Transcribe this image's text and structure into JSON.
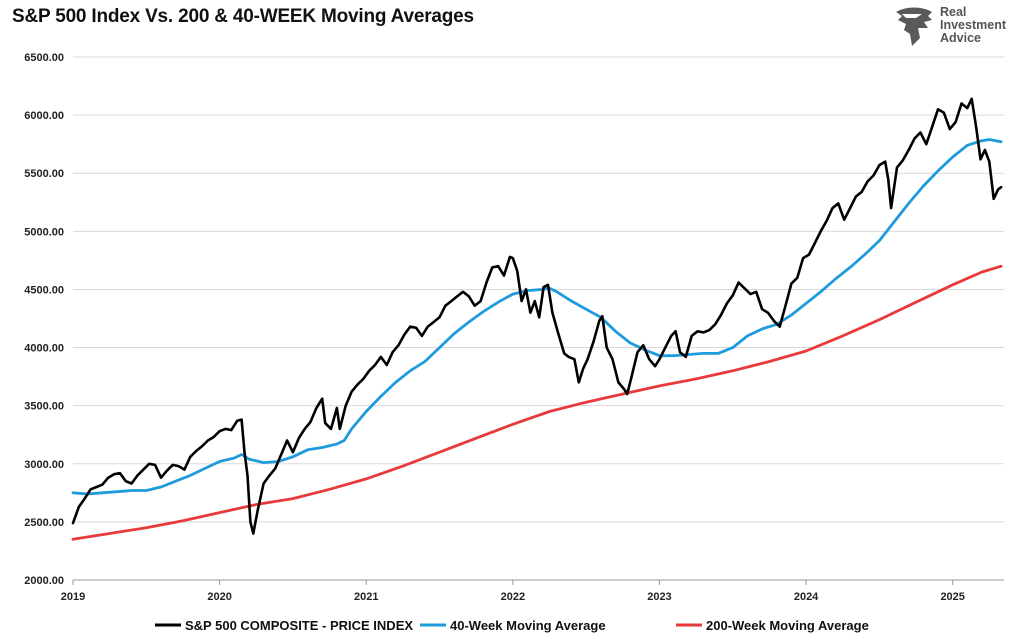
{
  "title": "S&P 500 Index Vs. 200 & 40-WEEK Moving Averages",
  "brand": {
    "lines": [
      "Real",
      "Investment",
      "Advice"
    ],
    "icon": "eagle-head-icon",
    "color": "#5a5a5a"
  },
  "chart_data": {
    "type": "line",
    "xlabel": "",
    "ylabel": "",
    "xlim": [
      2019.0,
      2025.35
    ],
    "ylim": [
      2000,
      6500
    ],
    "y_ticks": [
      "2000.00",
      "2500.00",
      "3000.00",
      "3500.00",
      "4000.00",
      "4500.00",
      "5000.00",
      "5500.00",
      "6000.00",
      "6500.00"
    ],
    "x_ticks": [
      "2019",
      "2020",
      "2021",
      "2022",
      "2023",
      "2024",
      "2025"
    ],
    "grid": "horizontal",
    "legend_position": "bottom",
    "series": [
      {
        "name": "S&P 500 COMPOSITE - PRICE INDEX",
        "color": "#000000",
        "points": [
          [
            2019.0,
            2490
          ],
          [
            2019.04,
            2630
          ],
          [
            2019.08,
            2700
          ],
          [
            2019.12,
            2780
          ],
          [
            2019.16,
            2800
          ],
          [
            2019.2,
            2820
          ],
          [
            2019.24,
            2880
          ],
          [
            2019.28,
            2910
          ],
          [
            2019.32,
            2920
          ],
          [
            2019.36,
            2850
          ],
          [
            2019.4,
            2830
          ],
          [
            2019.44,
            2900
          ],
          [
            2019.48,
            2950
          ],
          [
            2019.52,
            3000
          ],
          [
            2019.56,
            2990
          ],
          [
            2019.6,
            2880
          ],
          [
            2019.64,
            2940
          ],
          [
            2019.68,
            2990
          ],
          [
            2019.72,
            2980
          ],
          [
            2019.76,
            2950
          ],
          [
            2019.8,
            3060
          ],
          [
            2019.84,
            3110
          ],
          [
            2019.88,
            3150
          ],
          [
            2019.92,
            3200
          ],
          [
            2019.96,
            3230
          ],
          [
            2020.0,
            3280
          ],
          [
            2020.04,
            3300
          ],
          [
            2020.08,
            3290
          ],
          [
            2020.12,
            3370
          ],
          [
            2020.15,
            3380
          ],
          [
            2020.17,
            3100
          ],
          [
            2020.19,
            2900
          ],
          [
            2020.21,
            2500
          ],
          [
            2020.23,
            2400
          ],
          [
            2020.26,
            2600
          ],
          [
            2020.3,
            2830
          ],
          [
            2020.34,
            2900
          ],
          [
            2020.38,
            2960
          ],
          [
            2020.42,
            3080
          ],
          [
            2020.46,
            3200
          ],
          [
            2020.5,
            3100
          ],
          [
            2020.54,
            3220
          ],
          [
            2020.58,
            3300
          ],
          [
            2020.62,
            3360
          ],
          [
            2020.66,
            3480
          ],
          [
            2020.7,
            3560
          ],
          [
            2020.72,
            3350
          ],
          [
            2020.76,
            3300
          ],
          [
            2020.8,
            3480
          ],
          [
            2020.82,
            3300
          ],
          [
            2020.86,
            3500
          ],
          [
            2020.9,
            3620
          ],
          [
            2020.94,
            3680
          ],
          [
            2020.98,
            3730
          ],
          [
            2021.02,
            3800
          ],
          [
            2021.06,
            3850
          ],
          [
            2021.1,
            3920
          ],
          [
            2021.14,
            3850
          ],
          [
            2021.18,
            3960
          ],
          [
            2021.22,
            4020
          ],
          [
            2021.26,
            4110
          ],
          [
            2021.3,
            4180
          ],
          [
            2021.34,
            4170
          ],
          [
            2021.38,
            4100
          ],
          [
            2021.42,
            4180
          ],
          [
            2021.46,
            4220
          ],
          [
            2021.5,
            4260
          ],
          [
            2021.54,
            4360
          ],
          [
            2021.58,
            4400
          ],
          [
            2021.62,
            4440
          ],
          [
            2021.66,
            4480
          ],
          [
            2021.7,
            4440
          ],
          [
            2021.74,
            4360
          ],
          [
            2021.78,
            4400
          ],
          [
            2021.82,
            4560
          ],
          [
            2021.86,
            4690
          ],
          [
            2021.9,
            4700
          ],
          [
            2021.94,
            4620
          ],
          [
            2021.98,
            4780
          ],
          [
            2022.0,
            4770
          ],
          [
            2022.03,
            4660
          ],
          [
            2022.06,
            4400
          ],
          [
            2022.09,
            4500
          ],
          [
            2022.12,
            4300
          ],
          [
            2022.15,
            4400
          ],
          [
            2022.18,
            4260
          ],
          [
            2022.21,
            4520
          ],
          [
            2022.24,
            4540
          ],
          [
            2022.27,
            4300
          ],
          [
            2022.31,
            4120
          ],
          [
            2022.35,
            3950
          ],
          [
            2022.38,
            3920
          ],
          [
            2022.42,
            3900
          ],
          [
            2022.45,
            3700
          ],
          [
            2022.48,
            3820
          ],
          [
            2022.51,
            3900
          ],
          [
            2022.55,
            4050
          ],
          [
            2022.59,
            4230
          ],
          [
            2022.61,
            4270
          ],
          [
            2022.64,
            4000
          ],
          [
            2022.68,
            3900
          ],
          [
            2022.72,
            3700
          ],
          [
            2022.76,
            3640
          ],
          [
            2022.78,
            3600
          ],
          [
            2022.81,
            3750
          ],
          [
            2022.85,
            3960
          ],
          [
            2022.89,
            4020
          ],
          [
            2022.93,
            3900
          ],
          [
            2022.97,
            3840
          ],
          [
            2023.0,
            3900
          ],
          [
            2023.04,
            4000
          ],
          [
            2023.08,
            4100
          ],
          [
            2023.11,
            4140
          ],
          [
            2023.14,
            3960
          ],
          [
            2023.18,
            3920
          ],
          [
            2023.22,
            4100
          ],
          [
            2023.26,
            4140
          ],
          [
            2023.3,
            4130
          ],
          [
            2023.34,
            4150
          ],
          [
            2023.38,
            4200
          ],
          [
            2023.42,
            4280
          ],
          [
            2023.46,
            4380
          ],
          [
            2023.5,
            4450
          ],
          [
            2023.54,
            4560
          ],
          [
            2023.58,
            4510
          ],
          [
            2023.62,
            4460
          ],
          [
            2023.66,
            4480
          ],
          [
            2023.7,
            4330
          ],
          [
            2023.74,
            4300
          ],
          [
            2023.78,
            4230
          ],
          [
            2023.82,
            4180
          ],
          [
            2023.86,
            4360
          ],
          [
            2023.9,
            4550
          ],
          [
            2023.94,
            4600
          ],
          [
            2023.98,
            4770
          ],
          [
            2024.02,
            4800
          ],
          [
            2024.06,
            4900
          ],
          [
            2024.1,
            5000
          ],
          [
            2024.14,
            5090
          ],
          [
            2024.18,
            5200
          ],
          [
            2024.22,
            5240
          ],
          [
            2024.26,
            5100
          ],
          [
            2024.3,
            5200
          ],
          [
            2024.34,
            5300
          ],
          [
            2024.38,
            5340
          ],
          [
            2024.42,
            5430
          ],
          [
            2024.46,
            5480
          ],
          [
            2024.5,
            5570
          ],
          [
            2024.54,
            5600
          ],
          [
            2024.56,
            5450
          ],
          [
            2024.58,
            5200
          ],
          [
            2024.62,
            5550
          ],
          [
            2024.66,
            5610
          ],
          [
            2024.7,
            5700
          ],
          [
            2024.74,
            5800
          ],
          [
            2024.78,
            5850
          ],
          [
            2024.82,
            5750
          ],
          [
            2024.86,
            5900
          ],
          [
            2024.9,
            6050
          ],
          [
            2024.94,
            6020
          ],
          [
            2024.98,
            5880
          ],
          [
            2025.02,
            5940
          ],
          [
            2025.06,
            6100
          ],
          [
            2025.1,
            6060
          ],
          [
            2025.13,
            6140
          ],
          [
            2025.16,
            5900
          ],
          [
            2025.19,
            5620
          ],
          [
            2025.22,
            5700
          ],
          [
            2025.25,
            5600
          ],
          [
            2025.28,
            5280
          ],
          [
            2025.31,
            5360
          ],
          [
            2025.33,
            5380
          ]
        ]
      },
      {
        "name": "40-Week Moving Average",
        "color": "#1e9bdc",
        "points": [
          [
            2019.0,
            2750
          ],
          [
            2019.1,
            2740
          ],
          [
            2019.2,
            2750
          ],
          [
            2019.3,
            2760
          ],
          [
            2019.4,
            2770
          ],
          [
            2019.5,
            2770
          ],
          [
            2019.6,
            2800
          ],
          [
            2019.7,
            2850
          ],
          [
            2019.8,
            2900
          ],
          [
            2019.9,
            2960
          ],
          [
            2020.0,
            3020
          ],
          [
            2020.1,
            3050
          ],
          [
            2020.15,
            3080
          ],
          [
            2020.2,
            3040
          ],
          [
            2020.3,
            3010
          ],
          [
            2020.4,
            3020
          ],
          [
            2020.5,
            3060
          ],
          [
            2020.6,
            3120
          ],
          [
            2020.7,
            3140
          ],
          [
            2020.8,
            3170
          ],
          [
            2020.85,
            3200
          ],
          [
            2020.9,
            3300
          ],
          [
            2021.0,
            3450
          ],
          [
            2021.1,
            3580
          ],
          [
            2021.2,
            3700
          ],
          [
            2021.3,
            3800
          ],
          [
            2021.4,
            3880
          ],
          [
            2021.5,
            4000
          ],
          [
            2021.6,
            4120
          ],
          [
            2021.7,
            4220
          ],
          [
            2021.8,
            4310
          ],
          [
            2021.9,
            4390
          ],
          [
            2022.0,
            4460
          ],
          [
            2022.1,
            4490
          ],
          [
            2022.2,
            4500
          ],
          [
            2022.25,
            4510
          ],
          [
            2022.3,
            4480
          ],
          [
            2022.4,
            4400
          ],
          [
            2022.5,
            4330
          ],
          [
            2022.6,
            4260
          ],
          [
            2022.7,
            4140
          ],
          [
            2022.8,
            4040
          ],
          [
            2022.9,
            3980
          ],
          [
            2023.0,
            3930
          ],
          [
            2023.1,
            3930
          ],
          [
            2023.2,
            3940
          ],
          [
            2023.3,
            3950
          ],
          [
            2023.4,
            3950
          ],
          [
            2023.5,
            4000
          ],
          [
            2023.6,
            4100
          ],
          [
            2023.7,
            4160
          ],
          [
            2023.8,
            4200
          ],
          [
            2023.9,
            4280
          ],
          [
            2024.0,
            4380
          ],
          [
            2024.1,
            4480
          ],
          [
            2024.2,
            4590
          ],
          [
            2024.3,
            4690
          ],
          [
            2024.4,
            4800
          ],
          [
            2024.5,
            4920
          ],
          [
            2024.6,
            5080
          ],
          [
            2024.7,
            5240
          ],
          [
            2024.8,
            5390
          ],
          [
            2024.9,
            5520
          ],
          [
            2025.0,
            5640
          ],
          [
            2025.1,
            5740
          ],
          [
            2025.2,
            5780
          ],
          [
            2025.25,
            5790
          ],
          [
            2025.33,
            5770
          ]
        ]
      },
      {
        "name": "200-Week Moving Average",
        "color": "#e83a3a",
        "points": [
          [
            2019.0,
            2350
          ],
          [
            2019.25,
            2400
          ],
          [
            2019.5,
            2450
          ],
          [
            2019.75,
            2510
          ],
          [
            2020.0,
            2580
          ],
          [
            2020.25,
            2650
          ],
          [
            2020.5,
            2700
          ],
          [
            2020.75,
            2780
          ],
          [
            2021.0,
            2870
          ],
          [
            2021.25,
            2980
          ],
          [
            2021.5,
            3100
          ],
          [
            2021.75,
            3220
          ],
          [
            2022.0,
            3340
          ],
          [
            2022.25,
            3450
          ],
          [
            2022.5,
            3530
          ],
          [
            2022.75,
            3600
          ],
          [
            2023.0,
            3670
          ],
          [
            2023.25,
            3730
          ],
          [
            2023.5,
            3800
          ],
          [
            2023.75,
            3880
          ],
          [
            2024.0,
            3970
          ],
          [
            2024.25,
            4100
          ],
          [
            2024.5,
            4240
          ],
          [
            2024.75,
            4390
          ],
          [
            2025.0,
            4540
          ],
          [
            2025.2,
            4650
          ],
          [
            2025.33,
            4700
          ]
        ]
      }
    ]
  }
}
